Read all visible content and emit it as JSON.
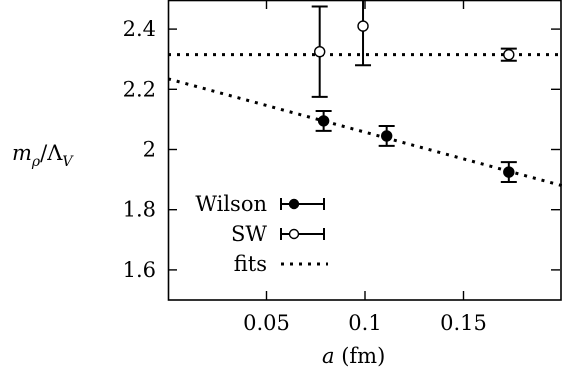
{
  "chart_data": {
    "type": "scatter",
    "title": "",
    "xlabel": "a (fm)",
    "ylabel": "m_ρ/Λ_V",
    "xlim": [
      0,
      0.2
    ],
    "ylim": [
      1.5,
      2.5
    ],
    "xticks": [
      0.05,
      0.1,
      0.15
    ],
    "xtick_labels": [
      "0.05",
      "0.1",
      "0.15"
    ],
    "yticks": [
      1.6,
      1.8,
      2.0,
      2.2,
      2.4
    ],
    "ytick_labels": [
      "1.6",
      "1.8",
      "2",
      "2.2",
      "2.4"
    ],
    "grid": false,
    "legend_position": "bottom-left",
    "series": [
      {
        "name": "Wilson",
        "marker": "filled-circle",
        "points": [
          {
            "x": 0.079,
            "y": 2.095,
            "err": 0.033
          },
          {
            "x": 0.111,
            "y": 2.045,
            "err": 0.033
          },
          {
            "x": 0.173,
            "y": 1.925,
            "err": 0.033
          }
        ]
      },
      {
        "name": "SW",
        "marker": "open-circle",
        "points": [
          {
            "x": 0.077,
            "y": 2.325,
            "ylow": 2.175,
            "yhigh": 2.475
          },
          {
            "x": 0.099,
            "y": 2.41,
            "ylow": 2.28,
            "yhigh": 2.5
          },
          {
            "x": 0.173,
            "y": 2.315,
            "err": 0.02
          }
        ]
      },
      {
        "name": "fits",
        "style": "dotted-line",
        "lines": [
          {
            "x": [
              0,
              0.2
            ],
            "y": [
              2.315,
              2.315
            ]
          },
          {
            "x": [
              0,
              0.2
            ],
            "y": [
              2.235,
              1.88
            ]
          }
        ]
      }
    ],
    "colors": {
      "ink": "#000000",
      "background": "#ffffff"
    }
  }
}
